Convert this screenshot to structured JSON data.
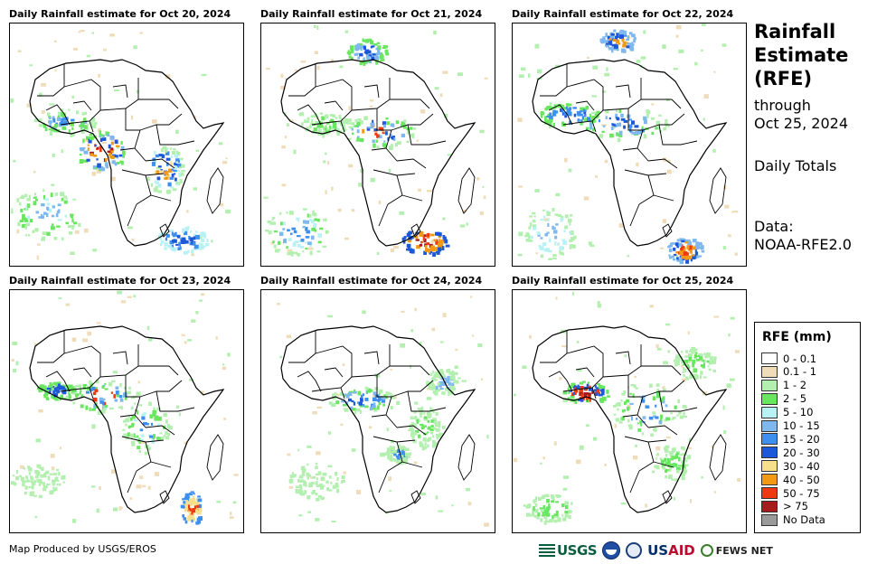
{
  "panels": [
    {
      "title": "Daily Rainfall estimate for Oct 20, 2024"
    },
    {
      "title": "Daily Rainfall estimate for Oct 21, 2024"
    },
    {
      "title": "Daily Rainfall estimate for Oct 22, 2024"
    },
    {
      "title": "Daily Rainfall estimate for Oct 23, 2024"
    },
    {
      "title": "Daily Rainfall estimate for Oct 24, 2024"
    },
    {
      "title": "Daily Rainfall estimate for Oct 25, 2024"
    }
  ],
  "side": {
    "title_line1": "Rainfall",
    "title_line2": "Estimate",
    "title_line3": "(RFE)",
    "through_line1": "through",
    "through_line2": "Oct 25, 2024",
    "totals": "Daily Totals",
    "data_line1": "Data:",
    "data_line2": "NOAA-RFE2.0"
  },
  "legend": {
    "title": "RFE (mm)",
    "items": [
      {
        "label": "0 - 0.1",
        "color": "#ffffff"
      },
      {
        "label": "0.1 - 1",
        "color": "#efdcb9"
      },
      {
        "label": "1 - 2",
        "color": "#b3f0b0"
      },
      {
        "label": "2 - 5",
        "color": "#69e65f"
      },
      {
        "label": "5 - 10",
        "color": "#b9f2f4"
      },
      {
        "label": "10 - 15",
        "color": "#7fb8ee"
      },
      {
        "label": "15 - 20",
        "color": "#3e8ff0"
      },
      {
        "label": "20 - 30",
        "color": "#1c58d8"
      },
      {
        "label": "30 - 40",
        "color": "#f6e08d"
      },
      {
        "label": "40 - 50",
        "color": "#f39a14"
      },
      {
        "label": "50 - 75",
        "color": "#ee3a10"
      },
      {
        "label": "> 75",
        "color": "#a61b1b"
      },
      {
        "label": "No Data",
        "color": "#9a9a9a"
      }
    ]
  },
  "footer": {
    "credit": "Map Produced by USGS/EROS",
    "logo_usgs": "USGS",
    "logo_usaid_us": "US",
    "logo_usaid_aid": "AID",
    "logo_fews": "FEWS NET"
  }
}
